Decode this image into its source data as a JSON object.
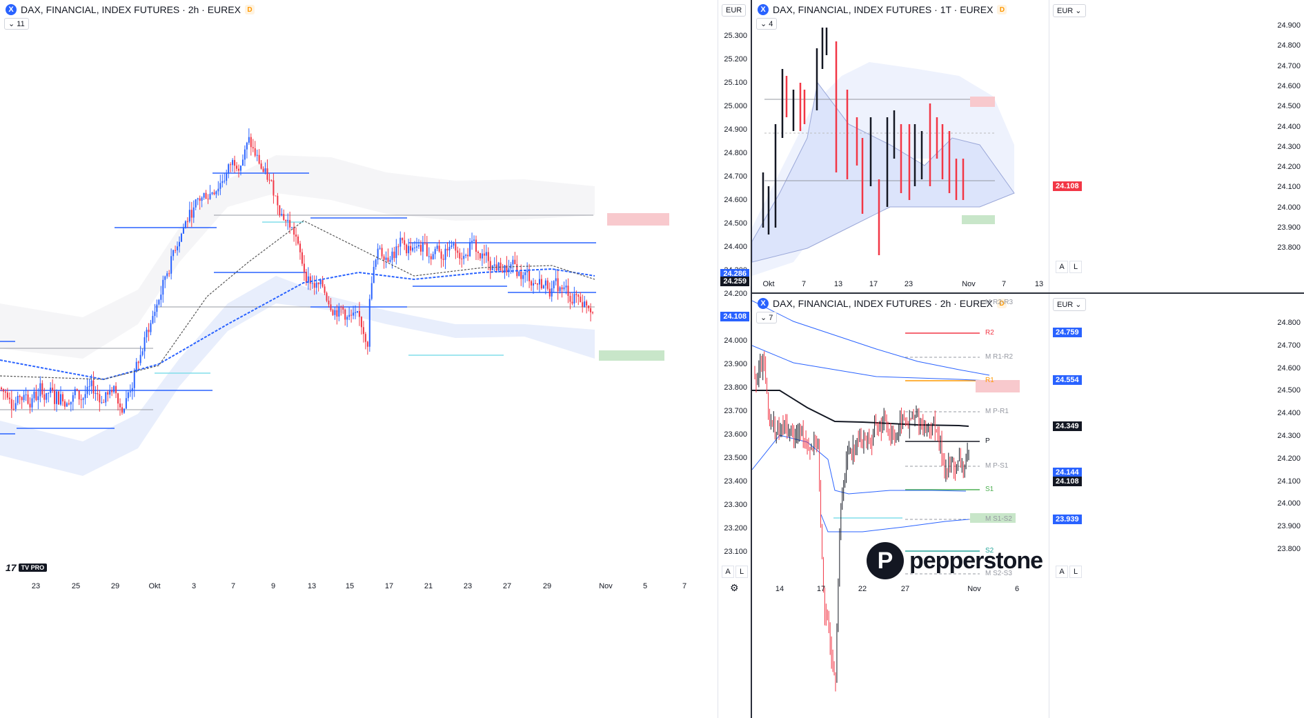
{
  "main": {
    "symbol_logo": "X",
    "title": "DAX, FINANCIAL, INDEX FUTURES · 2h · EUREX",
    "badge": "D",
    "currency": "EUR",
    "collapse": "11",
    "logo": "TV PRO",
    "price_axis": [
      "25.300",
      "25.200",
      "25.100",
      "25.000",
      "24.900",
      "24.800",
      "24.700",
      "24.600",
      "24.500",
      "24.400",
      "24.300",
      "24.200",
      "24.100",
      "24.000",
      "23.900",
      "23.800",
      "23.700",
      "23.600",
      "23.500",
      "23.400",
      "23.300",
      "23.200",
      "23.100"
    ],
    "time_axis": [
      "23",
      "25",
      "29",
      "Okt",
      "3",
      "7",
      "9",
      "13",
      "15",
      "17",
      "21",
      "23",
      "27",
      "29",
      "Nov",
      "5",
      "7"
    ],
    "tags": {
      "a": "24.286",
      "b": "24.259",
      "c": "24.108"
    },
    "btn_a": "A",
    "btn_l": "L"
  },
  "daily": {
    "symbol_logo": "X",
    "title": "DAX, FINANCIAL, INDEX FUTURES · 1T · EUREX",
    "badge": "D",
    "currency": "EUR",
    "collapse": "4",
    "price_axis": [
      "24.900",
      "24.800",
      "24.700",
      "24.600",
      "24.500",
      "24.400",
      "24.300",
      "24.200",
      "24.100",
      "24.000",
      "23.900",
      "23.800"
    ],
    "time_axis": [
      "Okt",
      "7",
      "13",
      "17",
      "23",
      "Nov",
      "7",
      "13"
    ],
    "tags": {
      "a": "24.108"
    },
    "btn_a": "A",
    "btn_l": "L"
  },
  "pivot": {
    "symbol_logo": "X",
    "title": "DAX, FINANCIAL, INDEX FUTURES · 2h · EUREX",
    "badge": "D",
    "currency": "EUR",
    "collapse": "7",
    "price_axis": [
      "24.800",
      "24.700",
      "24.600",
      "24.500",
      "24.400",
      "24.300",
      "24.200",
      "24.100",
      "24.000",
      "23.900",
      "23.800"
    ],
    "time_axis": [
      "14",
      "17",
      "22",
      "27",
      "Nov",
      "6"
    ],
    "tags": {
      "a": "24.759",
      "b": "24.554",
      "c": "24.349",
      "d": "24.144",
      "e": "24.108",
      "f": "23.939"
    },
    "pivots": [
      "M R2-R3",
      "R2",
      "M R1-R2",
      "R1",
      "M P-R1",
      "P",
      "M P-S1",
      "S1",
      "M S1-S2",
      "S2",
      "M S2-S3"
    ],
    "brand": "pepperstone",
    "btn_a": "A",
    "btn_l": "L"
  },
  "colors": {
    "up": "#2962ff",
    "down": "#f23645",
    "black": "#131722",
    "band": "#2962ff"
  }
}
